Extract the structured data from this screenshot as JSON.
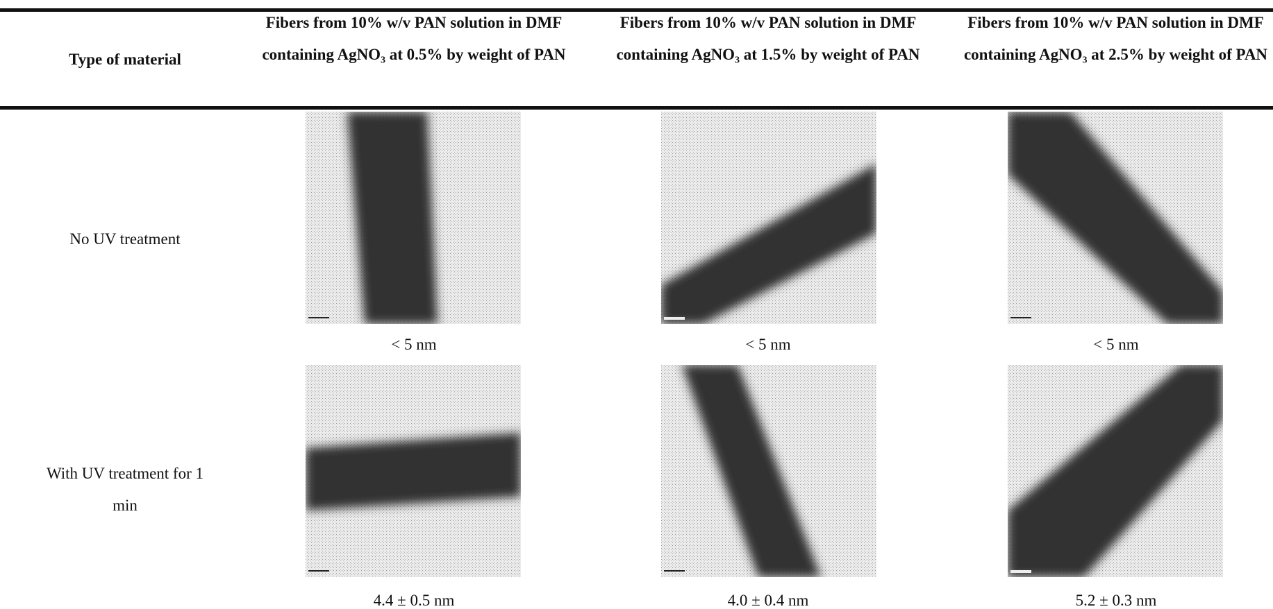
{
  "table": {
    "header": [
      "Type of material",
      "Fibers from 10% w/v PAN solution in DMF containing AgNO₃ at 0.5% by weight of PAN",
      "Fibers from 10% w/v PAN solution in DMF containing AgNO₃ at 1.5% by weight of PAN",
      "Fibers from 10% w/v PAN solution in DMF containing AgNO₃ at 2.5% by weight of PAN"
    ],
    "rows": [
      {
        "label": "No UV treatment",
        "cells": [
          "< 5 nm",
          "< 5 nm",
          "< 5 nm"
        ]
      },
      {
        "label": "With UV treatment for 1 min",
        "cells": [
          "4.4 ± 0.5 nm",
          "4.0 ± 0.4 nm",
          "5.2 ± 0.3 nm"
        ]
      }
    ]
  }
}
